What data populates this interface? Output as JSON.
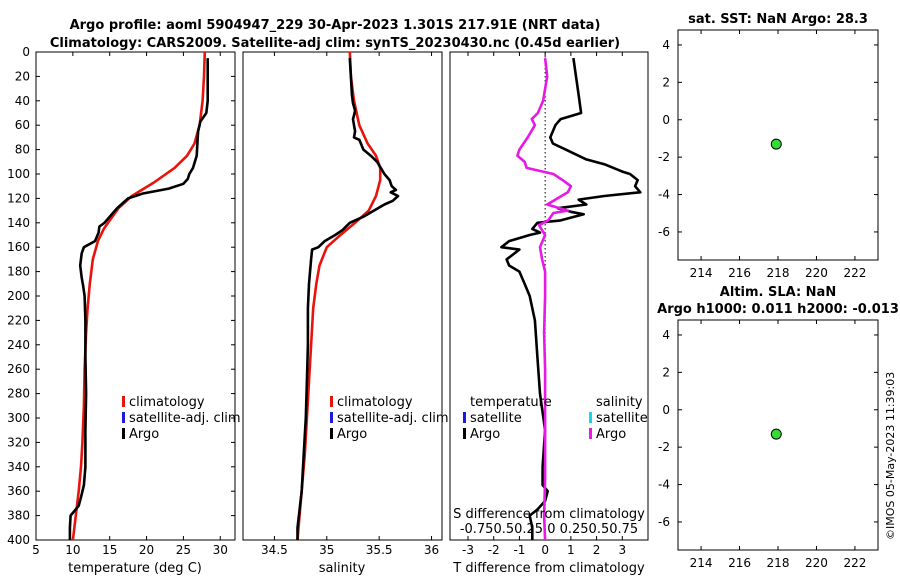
{
  "header": {
    "line1": "Argo profile: aoml 5904947_229 30-Apr-2023 1.301S 217.91E (NRT data)",
    "line2": "Climatology: CARS2009. Satellite-adj clim: synTS_20230430.nc (0.45d earlier)"
  },
  "timestamp": "©IMOS 05-May-2023 11:39:03",
  "colors": {
    "climatology": "#e8140c",
    "satellite_clim": "#1a1ae6",
    "argo": "#000000",
    "sat_salinity": "#19d3e6",
    "argo_salinity": "#e619e6",
    "marker_fill": "#33dd33"
  },
  "depth_axis": {
    "ticks": [
      "0",
      "20",
      "40",
      "60",
      "80",
      "100",
      "120",
      "140",
      "160",
      "180",
      "200",
      "220",
      "240",
      "260",
      "280",
      "300",
      "320",
      "340",
      "360",
      "380",
      "400"
    ]
  },
  "chart_data": [
    {
      "id": "temperature",
      "type": "line",
      "xlabel": "temperature (deg C)",
      "xlim": [
        5,
        32
      ],
      "ylim": [
        0,
        400
      ],
      "xticks": [
        "5",
        "10",
        "15",
        "20",
        "25",
        "30"
      ],
      "legend": {
        "labels": [
          "climatology",
          "satellite-adj. clim",
          "Argo"
        ]
      },
      "series": [
        {
          "name": "climatology",
          "points": [
            [
              27.9,
              0
            ],
            [
              27.8,
              20
            ],
            [
              27.6,
              40
            ],
            [
              27.2,
              60
            ],
            [
              26.5,
              75
            ],
            [
              25.5,
              85
            ],
            [
              23.8,
              95
            ],
            [
              21,
              107
            ],
            [
              18,
              118
            ],
            [
              16.2,
              128
            ],
            [
              15,
              138
            ],
            [
              14.2,
              145
            ],
            [
              13.4,
              155
            ],
            [
              12.7,
              170
            ],
            [
              12.3,
              190
            ],
            [
              12,
              210
            ],
            [
              11.8,
              230
            ],
            [
              11.6,
              260
            ],
            [
              11.5,
              290
            ],
            [
              11.3,
              320
            ],
            [
              11.1,
              340
            ],
            [
              10.8,
              360
            ],
            [
              10.4,
              380
            ],
            [
              10,
              400
            ]
          ]
        },
        {
          "name": "Argo",
          "points": [
            [
              28.3,
              5
            ],
            [
              28.3,
              20
            ],
            [
              28.3,
              40
            ],
            [
              28.1,
              50
            ],
            [
              27.3,
              57
            ],
            [
              27.0,
              65
            ],
            [
              26.9,
              75
            ],
            [
              26.8,
              85
            ],
            [
              26.3,
              95
            ],
            [
              25.8,
              100
            ],
            [
              25.6,
              104
            ],
            [
              25.0,
              108
            ],
            [
              23,
              112
            ],
            [
              19.5,
              116
            ],
            [
              17.5,
              120
            ],
            [
              16,
              128
            ],
            [
              15,
              135
            ],
            [
              14.3,
              140
            ],
            [
              13.6,
              143
            ],
            [
              13.5,
              148
            ],
            [
              13,
              155
            ],
            [
              11.5,
              160
            ],
            [
              11.2,
              165
            ],
            [
              11,
              175
            ],
            [
              11.2,
              185
            ],
            [
              11.4,
              192
            ],
            [
              11.6,
              200
            ],
            [
              11.7,
              220
            ],
            [
              11.7,
              250
            ],
            [
              11.8,
              280
            ],
            [
              11.7,
              310
            ],
            [
              11.7,
              340
            ],
            [
              11.5,
              355
            ],
            [
              11.1,
              365
            ],
            [
              10.8,
              372
            ],
            [
              9.7,
              380
            ],
            [
              9.6,
              390
            ],
            [
              9.6,
              400
            ]
          ]
        }
      ]
    },
    {
      "id": "salinity",
      "type": "line",
      "xlabel": "salinity",
      "xlim": [
        34.2,
        36.1
      ],
      "ylim": [
        0,
        400
      ],
      "xticks": [
        "34.5",
        "35",
        "35.5",
        "36"
      ],
      "legend": {
        "labels": [
          "climatology",
          "satellite-adj. clim",
          "Argo"
        ]
      },
      "series": [
        {
          "name": "climatology",
          "points": [
            [
              35.22,
              0
            ],
            [
              35.23,
              20
            ],
            [
              35.26,
              40
            ],
            [
              35.31,
              60
            ],
            [
              35.39,
              75
            ],
            [
              35.47,
              85
            ],
            [
              35.51,
              95
            ],
            [
              35.51,
              105
            ],
            [
              35.47,
              118
            ],
            [
              35.4,
              130
            ],
            [
              35.27,
              140
            ],
            [
              35.13,
              150
            ],
            [
              35.0,
              160
            ],
            [
              34.93,
              175
            ],
            [
              34.9,
              190
            ],
            [
              34.87,
              210
            ],
            [
              34.85,
              240
            ],
            [
              34.83,
              270
            ],
            [
              34.81,
              300
            ],
            [
              34.79,
              330
            ],
            [
              34.77,
              350
            ],
            [
              34.75,
              370
            ],
            [
              34.73,
              390
            ],
            [
              34.72,
              400
            ]
          ]
        },
        {
          "name": "Argo",
          "points": [
            [
              35.22,
              5
            ],
            [
              35.23,
              20
            ],
            [
              35.24,
              35
            ],
            [
              35.25,
              42
            ],
            [
              35.27,
              48
            ],
            [
              35.26,
              52
            ],
            [
              35.25,
              55
            ],
            [
              35.26,
              60
            ],
            [
              35.27,
              65
            ],
            [
              35.26,
              70
            ],
            [
              35.31,
              72
            ],
            [
              35.35,
              80
            ],
            [
              35.42,
              85
            ],
            [
              35.48,
              90
            ],
            [
              35.55,
              100
            ],
            [
              35.6,
              105
            ],
            [
              35.62,
              110
            ],
            [
              35.66,
              113
            ],
            [
              35.61,
              115
            ],
            [
              35.68,
              118
            ],
            [
              35.63,
              122
            ],
            [
              35.55,
              125
            ],
            [
              35.45,
              130
            ],
            [
              35.35,
              135
            ],
            [
              35.22,
              140
            ],
            [
              35.15,
              146
            ],
            [
              35.08,
              150
            ],
            [
              34.98,
              155
            ],
            [
              34.92,
              160
            ],
            [
              34.86,
              162
            ],
            [
              34.85,
              170
            ],
            [
              34.83,
              190
            ],
            [
              34.82,
              210
            ],
            [
              34.82,
              240
            ],
            [
              34.81,
              270
            ],
            [
              34.8,
              300
            ],
            [
              34.78,
              330
            ],
            [
              34.76,
              360
            ],
            [
              34.74,
              375
            ],
            [
              34.72,
              390
            ],
            [
              34.72,
              400
            ]
          ]
        }
      ]
    },
    {
      "id": "difference",
      "type": "line",
      "xlabel": "T difference from climatology",
      "xlabel2": "S difference from climatology",
      "xlim": [
        -3.7,
        4.0
      ],
      "ylim": [
        0,
        400
      ],
      "xticks": [
        "-3",
        "-2",
        "-1",
        "0",
        "1",
        "2",
        "3"
      ],
      "xticks2": "-0.750.50.25 0  0.250.50.75",
      "legend": {
        "temperature_title": "temperature",
        "salinity_title": "salinity",
        "labels": [
          "satellite",
          "Argo",
          "satellite",
          "Argo"
        ]
      },
      "series": [
        {
          "name": "Argo T diff",
          "points": [
            [
              1.1,
              5
            ],
            [
              1.2,
              20
            ],
            [
              1.3,
              35
            ],
            [
              1.4,
              50
            ],
            [
              0.6,
              55
            ],
            [
              0.4,
              60
            ],
            [
              0.2,
              70
            ],
            [
              0.3,
              75
            ],
            [
              0.8,
              80
            ],
            [
              1.6,
              88
            ],
            [
              2.3,
              92
            ],
            [
              3.0,
              98
            ],
            [
              3.3,
              100
            ],
            [
              3.6,
              105
            ],
            [
              3.5,
              110
            ],
            [
              3.7,
              115
            ],
            [
              2.3,
              118
            ],
            [
              1.3,
              121
            ],
            [
              1.6,
              125
            ],
            [
              0.5,
              128
            ],
            [
              1.0,
              131
            ],
            [
              1.5,
              133
            ],
            [
              0.6,
              138
            ],
            [
              -0.3,
              140
            ],
            [
              -0.5,
              145
            ],
            [
              -0.2,
              148
            ],
            [
              -0.6,
              150
            ],
            [
              -1.4,
              155
            ],
            [
              -1.7,
              160
            ],
            [
              -1.0,
              162
            ],
            [
              -1.5,
              170
            ],
            [
              -1.4,
              175
            ],
            [
              -1.0,
              180
            ],
            [
              -0.8,
              190
            ],
            [
              -0.6,
              200
            ],
            [
              -0.4,
              220
            ],
            [
              -0.3,
              250
            ],
            [
              -0.2,
              280
            ],
            [
              0,
              310
            ],
            [
              -0.1,
              340
            ],
            [
              -0.1,
              355
            ],
            [
              0.1,
              360
            ],
            [
              0.0,
              368
            ],
            [
              -0.3,
              375
            ],
            [
              -0.6,
              380
            ],
            [
              -0.5,
              390
            ],
            [
              -0.5,
              400
            ]
          ]
        },
        {
          "name": "Argo S diff",
          "points": [
            [
              0.0,
              5
            ],
            [
              0.02,
              20
            ],
            [
              -0.02,
              40
            ],
            [
              -0.07,
              50
            ],
            [
              -0.13,
              55
            ],
            [
              -0.1,
              60
            ],
            [
              -0.17,
              70
            ],
            [
              -0.25,
              80
            ],
            [
              -0.27,
              85
            ],
            [
              -0.2,
              90
            ],
            [
              -0.18,
              95
            ],
            [
              0.08,
              100
            ],
            [
              0.17,
              105
            ],
            [
              0.25,
              110
            ],
            [
              0.22,
              115
            ],
            [
              0.12,
              120
            ],
            [
              0.02,
              125
            ],
            [
              0.22,
              130
            ],
            [
              0.08,
              132
            ],
            [
              0.03,
              138
            ],
            [
              -0.06,
              142
            ],
            [
              0.0,
              150
            ],
            [
              -0.05,
              160
            ],
            [
              -0.03,
              170
            ],
            [
              0.0,
              180
            ],
            [
              0.0,
              200
            ],
            [
              -0.01,
              230
            ],
            [
              0.0,
              260
            ],
            [
              0.0,
              290
            ],
            [
              0.0,
              320
            ],
            [
              0.0,
              350
            ],
            [
              -0.01,
              380
            ],
            [
              0.0,
              400
            ]
          ]
        }
      ]
    },
    {
      "id": "sst",
      "type": "scatter",
      "title": "sat. SST: NaN Argo: 28.3",
      "xlim": [
        212.8,
        223.2
      ],
      "ylim": [
        -7.5,
        4.8
      ],
      "xticks": [
        "214",
        "216",
        "218",
        "220",
        "222"
      ],
      "yticks": [
        "4",
        "2",
        "0",
        "-2",
        "-4",
        "-6"
      ],
      "points": [
        [
          217.91,
          -1.301
        ]
      ]
    },
    {
      "id": "sla",
      "type": "scatter",
      "title": "Altim. SLA: NaN",
      "title2": "Argo h1000: 0.011 h2000: -0.013",
      "xlim": [
        212.8,
        223.2
      ],
      "ylim": [
        -7.5,
        4.8
      ],
      "xticks": [
        "214",
        "216",
        "218",
        "220",
        "222"
      ],
      "yticks": [
        "4",
        "2",
        "0",
        "-2",
        "-4",
        "-6"
      ],
      "points": [
        [
          217.91,
          -1.301
        ]
      ]
    }
  ]
}
